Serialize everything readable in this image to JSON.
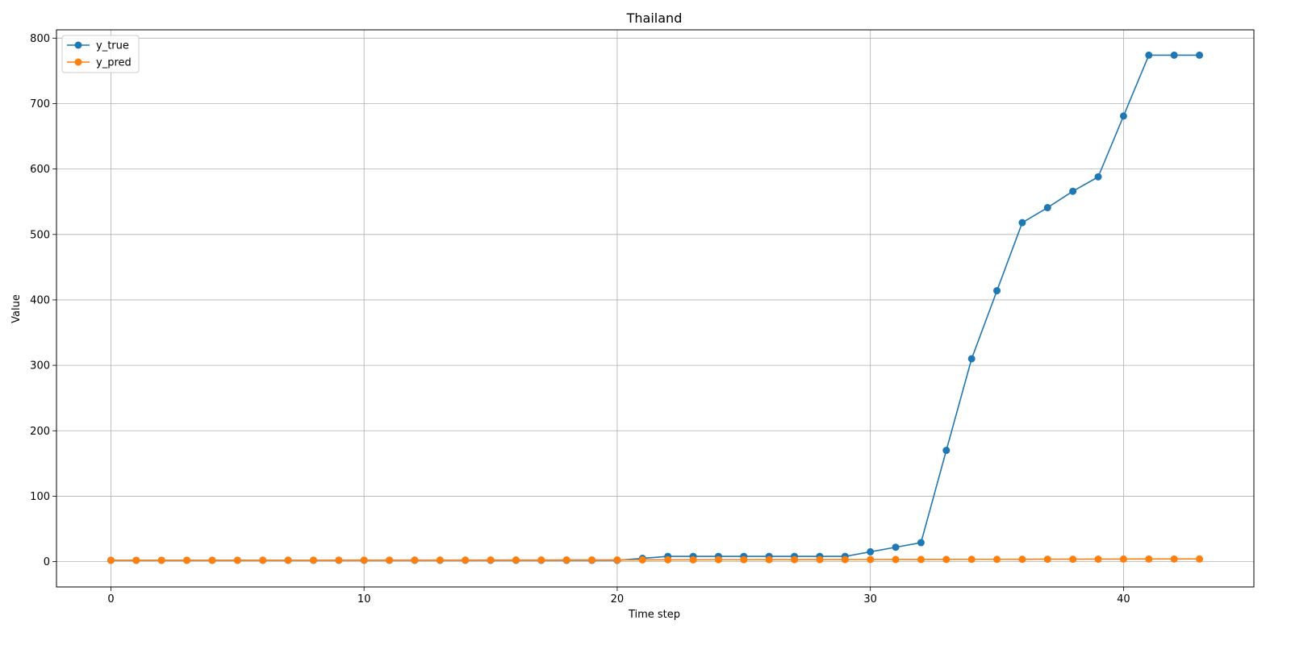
{
  "chart_data": {
    "type": "line",
    "title": "Thailand",
    "xlabel": "Time step",
    "ylabel": "Value",
    "xlim": [
      -2.15,
      45.15
    ],
    "ylim": [
      -38.7,
      812.7
    ],
    "xticks": [
      0,
      10,
      20,
      30,
      40
    ],
    "yticks": [
      0,
      100,
      200,
      300,
      400,
      500,
      600,
      700,
      800
    ],
    "grid": true,
    "legend_position": "upper-left",
    "series": [
      {
        "name": "y_true",
        "color": "#1f77b4",
        "marker": "circle",
        "x": [
          0,
          1,
          2,
          3,
          4,
          5,
          6,
          7,
          8,
          9,
          10,
          11,
          12,
          13,
          14,
          15,
          16,
          17,
          18,
          19,
          20,
          21,
          22,
          23,
          24,
          25,
          26,
          27,
          28,
          29,
          30,
          31,
          32,
          33,
          34,
          35,
          36,
          37,
          38,
          39,
          40,
          41,
          42,
          43
        ],
        "values": [
          2,
          2,
          2,
          2,
          2,
          2,
          2,
          2,
          2,
          2,
          2,
          2,
          2,
          2,
          2,
          2,
          2,
          2,
          2,
          2,
          2,
          5,
          8,
          8,
          8,
          8,
          8,
          8,
          8,
          8,
          15,
          22,
          29,
          170,
          310,
          414,
          518,
          541,
          566,
          588,
          681,
          774,
          774,
          774
        ]
      },
      {
        "name": "y_pred",
        "color": "#ff7f0e",
        "marker": "circle",
        "x": [
          0,
          1,
          2,
          3,
          4,
          5,
          6,
          7,
          8,
          9,
          10,
          11,
          12,
          13,
          14,
          15,
          16,
          17,
          18,
          19,
          20,
          21,
          22,
          23,
          24,
          25,
          26,
          27,
          28,
          29,
          30,
          31,
          32,
          33,
          34,
          35,
          36,
          37,
          38,
          39,
          40,
          41,
          42,
          43
        ],
        "values": [
          2.0,
          2.0,
          2.0,
          2.1,
          2.1,
          2.1,
          2.2,
          2.2,
          2.2,
          2.3,
          2.3,
          2.3,
          2.4,
          2.4,
          2.4,
          2.5,
          2.5,
          2.5,
          2.6,
          2.6,
          2.6,
          2.7,
          2.8,
          2.8,
          2.9,
          2.9,
          3.0,
          3.0,
          3.1,
          3.1,
          3.2,
          3.3,
          3.3,
          3.4,
          3.5,
          3.5,
          3.6,
          3.7,
          3.7,
          3.8,
          3.9,
          4.0,
          4.0,
          4.1
        ]
      }
    ]
  }
}
